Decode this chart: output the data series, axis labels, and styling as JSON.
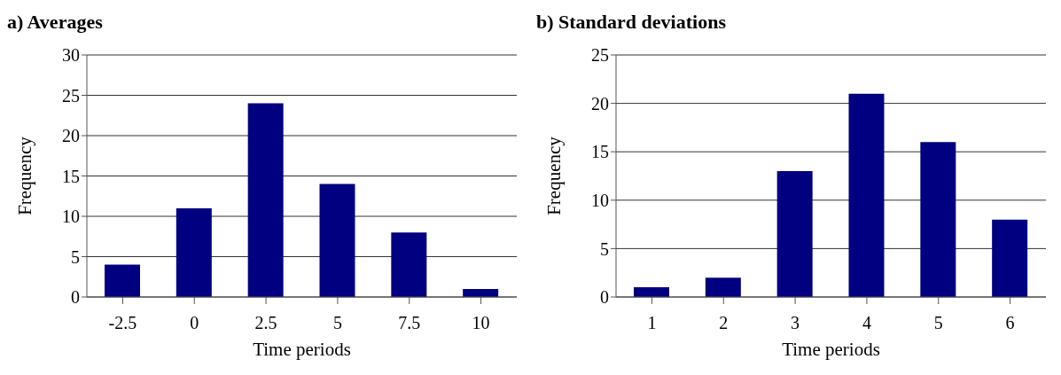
{
  "chart_data": [
    {
      "type": "bar",
      "title": "a) Averages",
      "xlabel": "Time periods",
      "ylabel": "Frequency",
      "categories": [
        "-2.5",
        "0",
        "2.5",
        "5",
        "7.5",
        "10"
      ],
      "values": [
        4,
        11,
        24,
        14,
        8,
        1
      ],
      "color": "#000080",
      "ylim": [
        0,
        30
      ],
      "yticks": [
        0,
        5,
        10,
        15,
        20,
        25,
        30
      ],
      "grid": "y"
    },
    {
      "type": "bar",
      "title": "b) Standard deviations",
      "xlabel": "Time periods",
      "ylabel": "Frequency",
      "categories": [
        "1",
        "2",
        "3",
        "4",
        "5",
        "6"
      ],
      "values": [
        1,
        2,
        13,
        21,
        16,
        8
      ],
      "color": "#000080",
      "ylim": [
        0,
        25
      ],
      "yticks": [
        0,
        5,
        10,
        15,
        20,
        25
      ],
      "grid": "y"
    }
  ]
}
